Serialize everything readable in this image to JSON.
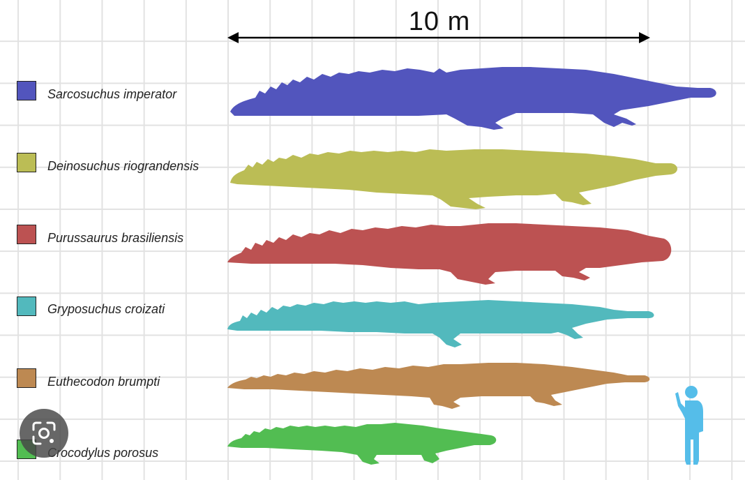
{
  "scale_bar": {
    "label": "10 m"
  },
  "legend": [
    {
      "name": "Sarcosuchus imperator",
      "color": "#5255bd"
    },
    {
      "name": "Deinosuchus riograndensis",
      "color": "#bbbd55"
    },
    {
      "name": "Purussaurus brasiliensis",
      "color": "#bc5252"
    },
    {
      "name": "Gryposuchus croizati",
      "color": "#52b9bd"
    },
    {
      "name": "Euthecodon brumpti",
      "color": "#bd8952"
    },
    {
      "name": "Crocodylus porosus",
      "color": "#52bd52"
    }
  ],
  "human_color": "#55bde9",
  "icons": {
    "lens": "google-lens-icon"
  }
}
